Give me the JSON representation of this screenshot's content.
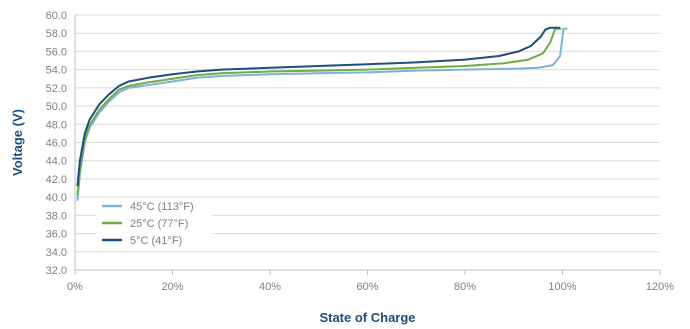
{
  "chart_data": {
    "type": "line",
    "title": "",
    "xlabel": "State of Charge",
    "ylabel": "Voltage (V)",
    "xlim": [
      0,
      120
    ],
    "ylim": [
      32,
      60
    ],
    "x_ticks": [
      0,
      20,
      40,
      60,
      80,
      100,
      120
    ],
    "x_tick_labels": [
      "0%",
      "20%",
      "40%",
      "60%",
      "80%",
      "100%",
      "120%"
    ],
    "y_ticks": [
      32,
      34,
      36,
      38,
      40,
      42,
      44,
      46,
      48,
      50,
      52,
      54,
      56,
      58,
      60
    ],
    "y_tick_labels": [
      "32.0",
      "34.0",
      "36.0",
      "38.0",
      "40.0",
      "42.0",
      "44.0",
      "46.0",
      "48.0",
      "50.0",
      "52.0",
      "54.0",
      "56.0",
      "58.0",
      "60.0"
    ],
    "grid": true,
    "legend_position": "lower-left",
    "series": [
      {
        "name": "45°C (113°F)",
        "color": "#7fb2d9",
        "points": [
          [
            0.5,
            39.6
          ],
          [
            1,
            42.5
          ],
          [
            2,
            46.0
          ],
          [
            3,
            47.6
          ],
          [
            5,
            49.3
          ],
          [
            7,
            50.5
          ],
          [
            9,
            51.5
          ],
          [
            11,
            52.0
          ],
          [
            15,
            52.3
          ],
          [
            20,
            52.7
          ],
          [
            25,
            53.1
          ],
          [
            30,
            53.3
          ],
          [
            40,
            53.5
          ],
          [
            50,
            53.6
          ],
          [
            60,
            53.7
          ],
          [
            70,
            53.9
          ],
          [
            80,
            54.0
          ],
          [
            90,
            54.1
          ],
          [
            95,
            54.2
          ],
          [
            98,
            54.5
          ],
          [
            99.5,
            55.5
          ],
          [
            100.2,
            58.5
          ],
          [
            101,
            58.5
          ]
        ]
      },
      {
        "name": "25°C (77°F)",
        "color": "#70ad47",
        "points": [
          [
            0.5,
            40.2
          ],
          [
            1,
            43.0
          ],
          [
            2,
            46.3
          ],
          [
            3,
            47.9
          ],
          [
            5,
            49.6
          ],
          [
            7,
            50.8
          ],
          [
            9,
            51.8
          ],
          [
            11,
            52.2
          ],
          [
            15,
            52.6
          ],
          [
            20,
            53.0
          ],
          [
            25,
            53.4
          ],
          [
            30,
            53.6
          ],
          [
            40,
            53.8
          ],
          [
            50,
            53.9
          ],
          [
            60,
            54.0
          ],
          [
            70,
            54.2
          ],
          [
            80,
            54.4
          ],
          [
            88,
            54.7
          ],
          [
            93,
            55.1
          ],
          [
            96,
            55.8
          ],
          [
            97.5,
            57.0
          ],
          [
            98.5,
            58.5
          ],
          [
            99.8,
            58.5
          ]
        ]
      },
      {
        "name": "5°C (41°F)",
        "color": "#1f4e79",
        "points": [
          [
            0.5,
            41.2
          ],
          [
            1,
            44.0
          ],
          [
            2,
            47.0
          ],
          [
            3,
            48.5
          ],
          [
            5,
            50.2
          ],
          [
            7,
            51.3
          ],
          [
            9,
            52.2
          ],
          [
            11,
            52.7
          ],
          [
            15,
            53.1
          ],
          [
            20,
            53.5
          ],
          [
            25,
            53.8
          ],
          [
            30,
            54.0
          ],
          [
            40,
            54.2
          ],
          [
            50,
            54.4
          ],
          [
            60,
            54.6
          ],
          [
            70,
            54.8
          ],
          [
            80,
            55.1
          ],
          [
            87,
            55.5
          ],
          [
            91,
            56.0
          ],
          [
            93.5,
            56.6
          ],
          [
            95.5,
            57.6
          ],
          [
            96.5,
            58.4
          ],
          [
            97.5,
            58.6
          ],
          [
            99.5,
            58.6
          ]
        ]
      }
    ]
  }
}
